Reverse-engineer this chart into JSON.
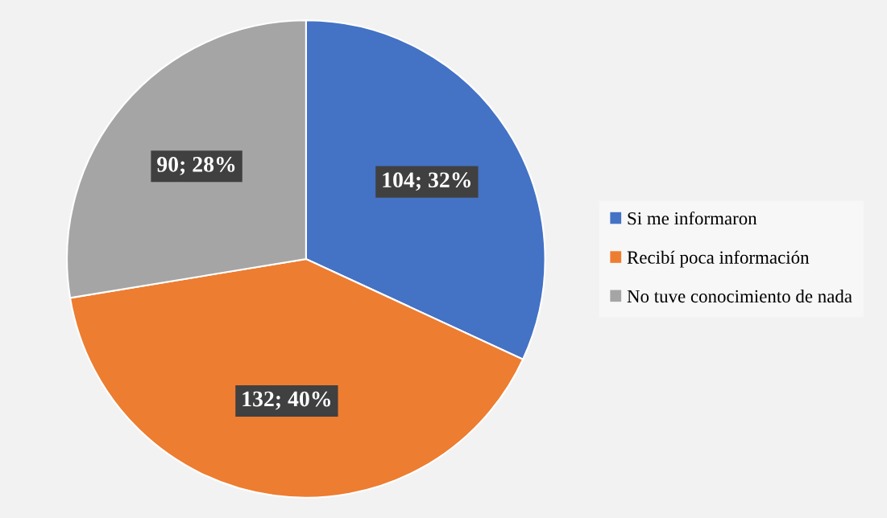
{
  "chart_data": {
    "type": "pie",
    "categories": [
      "Si me informaron",
      "Recibí poca información",
      "No tuve conocimiento de nada"
    ],
    "values": [
      104,
      132,
      90
    ],
    "colors": [
      "#4472c4",
      "#ed7d31",
      "#a5a5a5"
    ],
    "value_labels": [
      "104; 32%",
      "132; 40%",
      "90; 28%"
    ],
    "legend": "right"
  }
}
